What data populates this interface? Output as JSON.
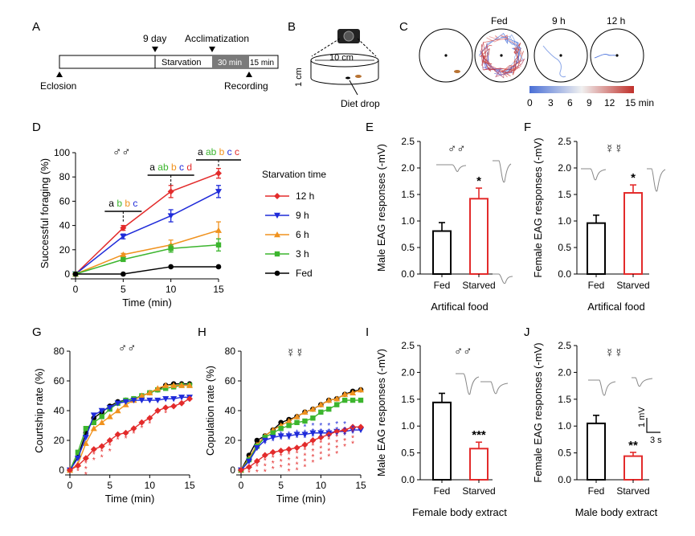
{
  "panels": {
    "A": {
      "letter": "A",
      "day_label": "9 day",
      "acclim_label": "Acclimatization",
      "starvation_label": "Starvation",
      "min30_label": "30 min",
      "min15_label": "15 min",
      "eclosion_label": "Eclosion",
      "recording_label": "Recording"
    },
    "B": {
      "letter": "B",
      "width_label": "10 cm",
      "height_label": "1 cm",
      "drop_label": "Diet drop"
    },
    "C": {
      "letter": "C",
      "titles": [
        "Fed",
        "9 h",
        "12 h"
      ],
      "colorbar_ticks": [
        "0",
        "3",
        "6",
        "9",
        "12",
        "15 min"
      ],
      "colors": {
        "low": "#4a6fd6",
        "mid": "#f0f0f0",
        "high": "#c0302a"
      }
    },
    "D": {
      "letter": "D",
      "sex": "♂♂"
    },
    "E": {
      "letter": "E",
      "sex": "♂♂"
    },
    "F": {
      "letter": "F",
      "sex": "☿☿"
    },
    "G": {
      "letter": "G",
      "sex": "♂♂"
    },
    "H": {
      "letter": "H",
      "sex": "☿☿"
    },
    "I": {
      "letter": "I",
      "sex": "♂♂"
    },
    "J": {
      "letter": "J",
      "sex": "☿☿",
      "scale_mv": "1 mV",
      "scale_s": "3 s"
    }
  },
  "chart_data": [
    {
      "id": "D",
      "type": "line",
      "xlabel": "Time (min)",
      "ylabel": "Successful foraging (%)",
      "xlim": [
        0,
        15
      ],
      "ylim": [
        0,
        100
      ],
      "xticks": [
        0,
        5,
        10,
        15
      ],
      "yticks": [
        0,
        20,
        40,
        60,
        80,
        100
      ],
      "legend_title": "Starvation time",
      "legend_position": "right",
      "x": [
        0,
        5,
        10,
        15
      ],
      "series": [
        {
          "name": "12 h",
          "color": "#e32b2b",
          "marker": "diamond",
          "values": [
            0,
            38,
            68,
            83
          ],
          "err": [
            0,
            2,
            5,
            4
          ]
        },
        {
          "name": "9 h",
          "color": "#1f2bd9",
          "marker": "triangle-down",
          "values": [
            0,
            31,
            48,
            68
          ],
          "err": [
            0,
            2,
            5,
            5
          ]
        },
        {
          "name": "6 h",
          "color": "#f0921e",
          "marker": "triangle-up",
          "values": [
            0,
            16,
            24,
            36
          ],
          "err": [
            0,
            1,
            4,
            7
          ]
        },
        {
          "name": "3 h",
          "color": "#3cb52e",
          "marker": "square",
          "values": [
            0,
            12,
            21,
            24
          ],
          "err": [
            0,
            1,
            3,
            5
          ]
        },
        {
          "name": "Fed",
          "color": "#000000",
          "marker": "circle",
          "values": [
            0,
            0,
            6,
            6
          ],
          "err": [
            0,
            0,
            0,
            0
          ]
        }
      ],
      "significance": [
        {
          "x": 5,
          "letters": [
            {
              "t": "a",
              "c": "#000000"
            },
            {
              "t": "b",
              "c": "#3cb52e"
            },
            {
              "t": "b",
              "c": "#f0921e"
            },
            {
              "t": "c",
              "c": "#1f2bd9"
            }
          ]
        },
        {
          "x": 10,
          "letters": [
            {
              "t": "a",
              "c": "#000000"
            },
            {
              "t": "ab",
              "c": "#3cb52e"
            },
            {
              "t": "b",
              "c": "#f0921e"
            },
            {
              "t": "c",
              "c": "#1f2bd9"
            },
            {
              "t": "d",
              "c": "#e32b2b"
            }
          ]
        },
        {
          "x": 15,
          "letters": [
            {
              "t": "a",
              "c": "#000000"
            },
            {
              "t": "ab",
              "c": "#3cb52e"
            },
            {
              "t": "b",
              "c": "#f0921e"
            },
            {
              "t": "c",
              "c": "#1f2bd9"
            },
            {
              "t": "c",
              "c": "#e32b2b"
            }
          ]
        }
      ]
    },
    {
      "id": "E",
      "type": "bar",
      "categories": [
        "Fed",
        "Starved"
      ],
      "values": [
        0.81,
        1.42
      ],
      "err": [
        0.16,
        0.2
      ],
      "colors": [
        "#000000",
        "#e32b2b"
      ],
      "ylabel": "Male EAG responses (-mV)",
      "xlabel": "Artifical food",
      "ylim": [
        0,
        2.5
      ],
      "yticks": [
        0.0,
        0.5,
        1.0,
        1.5,
        2.0,
        2.5
      ],
      "stars": [
        "",
        "*"
      ]
    },
    {
      "id": "F",
      "type": "bar",
      "categories": [
        "Fed",
        "Starved"
      ],
      "values": [
        0.96,
        1.53
      ],
      "err": [
        0.15,
        0.15
      ],
      "colors": [
        "#000000",
        "#e32b2b"
      ],
      "ylabel": "Female EAG responses (-mV)",
      "xlabel": "Artifical food",
      "ylim": [
        0,
        2.5
      ],
      "yticks": [
        0.0,
        0.5,
        1.0,
        1.5,
        2.0,
        2.5
      ],
      "stars": [
        "",
        "*"
      ]
    },
    {
      "id": "G",
      "type": "line",
      "xlabel": "Time (min)",
      "ylabel": "Courtship rate (%)",
      "xlim": [
        0,
        15
      ],
      "ylim": [
        0,
        80
      ],
      "xticks": [
        0,
        5,
        10,
        15
      ],
      "yticks": [
        0,
        20,
        40,
        60,
        80
      ],
      "x": [
        0,
        1,
        2,
        3,
        4,
        5,
        6,
        7,
        8,
        9,
        10,
        11,
        12,
        13,
        14,
        15
      ],
      "series": [
        {
          "name": "Fed",
          "color": "#000000",
          "marker": "circle",
          "values": [
            0,
            9,
            25,
            35,
            39,
            43,
            46,
            47,
            48,
            50,
            52,
            54,
            57,
            58,
            58,
            58
          ]
        },
        {
          "name": "3 h",
          "color": "#3cb52e",
          "marker": "square",
          "values": [
            0,
            12,
            28,
            32,
            36,
            41,
            45,
            47,
            48,
            50,
            52,
            54,
            55,
            56,
            57,
            57
          ]
        },
        {
          "name": "6 h",
          "color": "#f0921e",
          "marker": "triangle-up",
          "values": [
            0,
            4,
            18,
            28,
            32,
            36,
            40,
            44,
            47,
            50,
            52,
            55,
            57,
            57,
            57,
            57
          ]
        },
        {
          "name": "9 h",
          "color": "#1f2bd9",
          "marker": "triangle-down",
          "values": [
            0,
            8,
            22,
            37,
            40,
            42,
            45,
            46,
            47,
            47,
            47,
            47,
            48,
            48,
            49,
            49
          ]
        },
        {
          "name": "12 h",
          "color": "#e32b2b",
          "marker": "diamond",
          "values": [
            0,
            3,
            8,
            14,
            16,
            20,
            24,
            25,
            28,
            32,
            35,
            40,
            42,
            43,
            45,
            48
          ]
        }
      ],
      "stars": [
        {
          "x": 1,
          "n": 1
        },
        {
          "x": 2,
          "n": 3
        },
        {
          "x": 3,
          "n": 2
        },
        {
          "x": 4,
          "n": 2
        },
        {
          "x": 5,
          "n": 2
        },
        {
          "x": 6,
          "n": 1
        },
        {
          "x": 7,
          "n": 1
        },
        {
          "x": 8,
          "n": 1
        },
        {
          "x": 9,
          "n": 1
        },
        {
          "x": 10,
          "n": 1
        },
        {
          "x": 12,
          "n": 1
        }
      ]
    },
    {
      "id": "H",
      "type": "line",
      "xlabel": "Time (min)",
      "ylabel": "Copulation rate (%)",
      "xlim": [
        0,
        15
      ],
      "ylim": [
        0,
        80
      ],
      "xticks": [
        0,
        5,
        10,
        15
      ],
      "yticks": [
        0,
        20,
        40,
        60,
        80
      ],
      "x": [
        0,
        1,
        2,
        3,
        4,
        5,
        6,
        7,
        8,
        9,
        10,
        11,
        12,
        13,
        14,
        15
      ],
      "series": [
        {
          "name": "Fed",
          "color": "#000000",
          "marker": "circle",
          "values": [
            0,
            10,
            20,
            23,
            27,
            32,
            34,
            36,
            39,
            41,
            44,
            47,
            48,
            51,
            53,
            54
          ]
        },
        {
          "name": "6 h",
          "color": "#f0921e",
          "marker": "triangle-up",
          "values": [
            0,
            8,
            17,
            23,
            27,
            30,
            33,
            36,
            39,
            41,
            44,
            47,
            48,
            51,
            52,
            54
          ]
        },
        {
          "name": "3 h",
          "color": "#3cb52e",
          "marker": "square",
          "values": [
            0,
            7,
            16,
            22,
            25,
            28,
            30,
            32,
            33,
            35,
            39,
            41,
            44,
            47,
            47,
            47
          ]
        },
        {
          "name": "9 h",
          "color": "#1f2bd9",
          "marker": "triangle-down",
          "values": [
            0,
            6,
            15,
            20,
            22,
            23,
            23,
            24,
            24,
            25,
            25,
            25,
            26,
            26,
            27,
            27
          ]
        },
        {
          "name": "12 h",
          "color": "#e32b2b",
          "marker": "diamond",
          "values": [
            0,
            2,
            6,
            10,
            12,
            13,
            14,
            15,
            17,
            20,
            22,
            24,
            26,
            27,
            29,
            29
          ]
        }
      ],
      "stars": [
        {
          "x": 1,
          "n": 1,
          "blue": 0
        },
        {
          "x": 2,
          "n": 2,
          "blue": 0
        },
        {
          "x": 3,
          "n": 3,
          "blue": 1
        },
        {
          "x": 4,
          "n": 3,
          "blue": 1
        },
        {
          "x": 5,
          "n": 3,
          "blue": 2
        },
        {
          "x": 6,
          "n": 4,
          "blue": 2
        },
        {
          "x": 7,
          "n": 4,
          "blue": 2
        },
        {
          "x": 8,
          "n": 4,
          "blue": 3
        },
        {
          "x": 9,
          "n": 4,
          "blue": 3
        },
        {
          "x": 10,
          "n": 4,
          "blue": 3
        },
        {
          "x": 11,
          "n": 4,
          "blue": 3
        },
        {
          "x": 12,
          "n": 4,
          "blue": 3
        },
        {
          "x": 13,
          "n": 3,
          "blue": 3
        },
        {
          "x": 14,
          "n": 3,
          "blue": 2
        }
      ]
    },
    {
      "id": "I",
      "type": "bar",
      "categories": [
        "Fed",
        "Starved"
      ],
      "values": [
        1.44,
        0.58
      ],
      "err": [
        0.17,
        0.12
      ],
      "colors": [
        "#000000",
        "#e32b2b"
      ],
      "ylabel": "Male EAG responses (-mV)",
      "xlabel": "Female body extract",
      "ylim": [
        0,
        2.5
      ],
      "yticks": [
        0.0,
        0.5,
        1.0,
        1.5,
        2.0,
        2.5
      ],
      "stars": [
        "",
        "***"
      ]
    },
    {
      "id": "J",
      "type": "bar",
      "categories": [
        "Fed",
        "Starved"
      ],
      "values": [
        1.05,
        0.44
      ],
      "err": [
        0.15,
        0.07
      ],
      "colors": [
        "#000000",
        "#e32b2b"
      ],
      "ylabel": "Female EAG responses (-mV)",
      "xlabel": "Male body extract",
      "ylim": [
        0,
        2.5
      ],
      "yticks": [
        0.0,
        0.5,
        1.0,
        1.5,
        2.0,
        2.5
      ],
      "stars": [
        "",
        "**"
      ]
    }
  ]
}
